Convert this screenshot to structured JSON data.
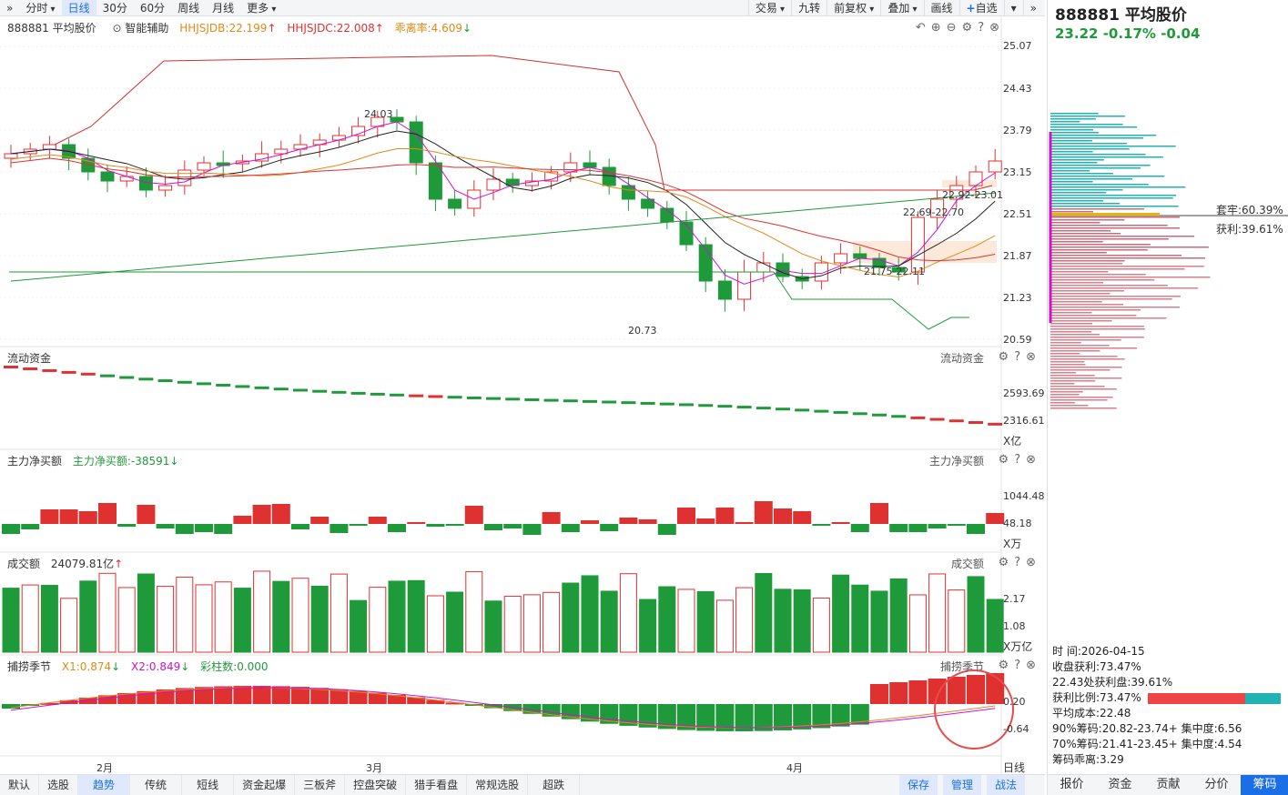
{
  "toolbar": {
    "left": [
      "分时",
      "日线",
      "30分",
      "60分",
      "周线",
      "月线",
      "更多"
    ],
    "active": "日线",
    "right": [
      "交易",
      "九转",
      "前复权",
      "叠加",
      "画线",
      "自选"
    ]
  },
  "symbol": {
    "code": "888881",
    "name": "平均股价",
    "title": "888881 平均股价",
    "price": "23.22",
    "change_pct": "-0.17%",
    "change": "-0.04"
  },
  "main_panel": {
    "assist": "智能辅助",
    "indicators": [
      {
        "label": "HHJSJDB:22.199",
        "arrow": "up",
        "color": "#e08a1a"
      },
      {
        "label": "HHJSJDC:22.008",
        "arrow": "up",
        "color": "#e03131"
      },
      {
        "label": "乖离率:4.609",
        "arrow": "down",
        "color": "#e08a1a"
      }
    ],
    "y_ticks": [
      "25.07",
      "24.43",
      "23.79",
      "23.15",
      "22.51",
      "21.87",
      "21.23",
      "20.59"
    ],
    "annotations": {
      "high": "24.03",
      "low": "20.73",
      "zone1": "22.92-23.01",
      "zone2": "22.69-22.70",
      "zone3": "21.75-22.11"
    },
    "chip_labels": {
      "trapped": "套牢:60.39%",
      "profit": "获利:39.61%"
    }
  },
  "panels": [
    {
      "title": "流动资金",
      "ticks": [
        "2593.69",
        "2316.61"
      ],
      "unit": "X亿"
    },
    {
      "title": "主力净买额",
      "extra": "主力净买额:-38591",
      "ticks": [
        "1044.48",
        "48.18"
      ],
      "unit": "X万"
    },
    {
      "title": "成交额",
      "extra": "24079.81亿",
      "ticks": [
        "2.17",
        "1.08"
      ],
      "unit": "X万亿"
    },
    {
      "title": "捕捞季节",
      "extra1": "X1:0.874",
      "extra2": "X2:0.849",
      "extra3": "彩柱数:0.000",
      "ticks": [
        "0.20",
        "-0.64"
      ]
    }
  ],
  "x_labels": [
    "2月",
    "3月",
    "4月"
  ],
  "period_label": "日线",
  "stats": {
    "time": "时     间:2026-04-15",
    "close_profit": "收盘获利:73.47%",
    "profit_at": "22.43处获利盘:39.61%",
    "profit_ratio": "获利比例:73.47%",
    "avg_cost": "平均成本:22.48",
    "chip90": "90%筹码:20.82-23.74+ 集中度:6.56",
    "chip70": "70%筹码:21.41-23.45+ 集中度:4.54",
    "deviation": "筹码乖离:3.29"
  },
  "bottom_tabs": [
    "默认",
    "选股",
    "趋势",
    "传统",
    "短线",
    "资金起爆",
    "三板斧",
    "控盘突破",
    "猎手看盘",
    "常规选股",
    "超跌"
  ],
  "bottom_active": "趋势",
  "bottom_right": [
    "保存",
    "管理",
    "战法"
  ],
  "right_tabs": [
    "报价",
    "资金",
    "贡献",
    "分价",
    "筹码"
  ],
  "right_active": "筹码",
  "colors": {
    "up": "#e03131",
    "down": "#1f9a3a",
    "accent": "#1a6fe6"
  }
}
